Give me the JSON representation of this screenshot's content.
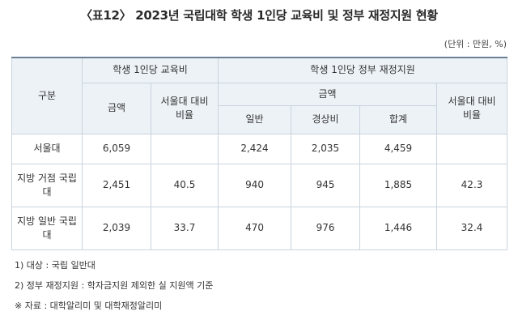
{
  "title": "〈표12〉 2023년 국립대학 학생 1인당 교육비 및 정부 재정지원 현황",
  "unit": "(단위 : 만원, %)",
  "header": {
    "col0": "구분",
    "group1": "학생 1인당 교육비",
    "group2": "학생 1인당 정부 재정지원",
    "amount": "금액",
    "ratio_seoul": "서울대 대비",
    "ratio": "비율",
    "general": "일반",
    "capital": "경상비",
    "total": "합계"
  },
  "rows": [
    {
      "label": "서울대",
      "edu_amount": "6,059",
      "edu_ratio": "",
      "general": "2,424",
      "capital": "2,035",
      "total": "4,459",
      "gov_ratio": ""
    },
    {
      "label": "지방 거점 국립대",
      "edu_amount": "2,451",
      "edu_ratio": "40.5",
      "general": "940",
      "capital": "945",
      "total": "1,885",
      "gov_ratio": "42.3"
    },
    {
      "label": "지방 일반 국립대",
      "edu_amount": "2,039",
      "edu_ratio": "33.7",
      "general": "470",
      "capital": "976",
      "total": "1,446",
      "gov_ratio": "32.4"
    }
  ],
  "notes": [
    "1) 대상 : 국립 일반대",
    "2) 정부 재정지원 : 학자금지원 제외한 실 지원액 기준",
    "※ 자료 : 대학알리미 및 대학재정알리미"
  ]
}
